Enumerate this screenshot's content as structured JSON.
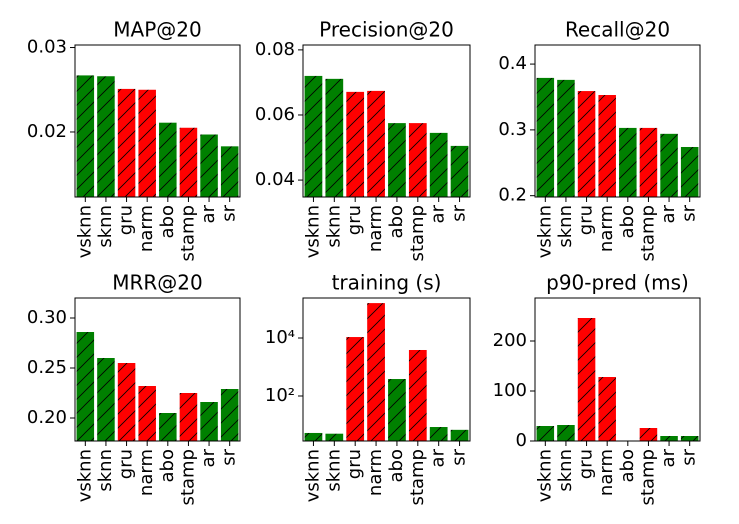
{
  "chart_data": [
    {
      "type": "bar",
      "title": "MAP@20",
      "categories": [
        "vsknn",
        "sknn",
        "gru",
        "narm",
        "abo",
        "stamp",
        "ar",
        "sr"
      ],
      "values": [
        0.0267,
        0.0266,
        0.0251,
        0.025,
        0.0211,
        0.0205,
        0.0197,
        0.0183
      ],
      "colors": [
        "#008000",
        "#008000",
        "#ff0000",
        "#ff0000",
        "#008000",
        "#ff0000",
        "#008000",
        "#008000"
      ],
      "ylim": [
        0.0123,
        0.0303
      ],
      "yticks": [
        0.02,
        0.03
      ]
    },
    {
      "type": "bar",
      "title": "Precision@20",
      "categories": [
        "vsknn",
        "sknn",
        "gru",
        "narm",
        "abo",
        "stamp",
        "ar",
        "sr"
      ],
      "values": [
        0.072,
        0.0711,
        0.0671,
        0.0674,
        0.0575,
        0.0575,
        0.0545,
        0.0505
      ],
      "colors": [
        "#008000",
        "#008000",
        "#ff0000",
        "#ff0000",
        "#008000",
        "#ff0000",
        "#008000",
        "#008000"
      ],
      "ylim": [
        0.0348,
        0.0815
      ],
      "yticks": [
        0.04,
        0.06,
        0.08
      ]
    },
    {
      "type": "bar",
      "title": "Recall@20",
      "categories": [
        "vsknn",
        "sknn",
        "gru",
        "narm",
        "abo",
        "stamp",
        "ar",
        "sr"
      ],
      "values": [
        0.379,
        0.376,
        0.359,
        0.353,
        0.303,
        0.303,
        0.294,
        0.274
      ],
      "colors": [
        "#008000",
        "#008000",
        "#ff0000",
        "#ff0000",
        "#008000",
        "#ff0000",
        "#008000",
        "#008000"
      ],
      "ylim": [
        0.198,
        0.429
      ],
      "yticks": [
        0.2,
        0.3,
        0.4
      ]
    },
    {
      "type": "bar",
      "title": "MRR@20",
      "categories": [
        "vsknn",
        "sknn",
        "gru",
        "narm",
        "abo",
        "stamp",
        "ar",
        "sr"
      ],
      "values": [
        0.286,
        0.26,
        0.255,
        0.232,
        0.205,
        0.225,
        0.216,
        0.229
      ],
      "colors": [
        "#008000",
        "#008000",
        "#ff0000",
        "#ff0000",
        "#008000",
        "#ff0000",
        "#008000",
        "#008000"
      ],
      "ylim": [
        0.177,
        0.32
      ],
      "yticks": [
        {
          "value": 0.2,
          "label": "0.20"
        },
        0.25,
        {
          "value": 0.3,
          "label": "0.30"
        }
      ]
    },
    {
      "type": "bar",
      "title": "training (s)",
      "log": true,
      "categories": [
        "vsknn",
        "sknn",
        "gru",
        "narm",
        "abo",
        "stamp",
        "ar",
        "sr"
      ],
      "values": [
        5.3,
        5,
        10800,
        160000,
        385,
        3860,
        8.5,
        6.8
      ],
      "colors": [
        "#008000",
        "#008000",
        "#ff0000",
        "#ff0000",
        "#008000",
        "#ff0000",
        "#008000",
        "#008000"
      ],
      "ylim": [
        2.8,
        240000
      ],
      "yticks": [
        {
          "value": 100,
          "label": "10²"
        },
        {
          "value": 10000,
          "label": "10⁴"
        }
      ]
    },
    {
      "type": "bar",
      "title": "p90-pred (ms)",
      "categories": [
        "vsknn",
        "sknn",
        "gru",
        "narm",
        "abo",
        "stamp",
        "ar",
        "sr"
      ],
      "values": [
        30,
        32,
        246,
        128,
        0,
        26,
        10,
        10
      ],
      "colors": [
        "#008000",
        "#008000",
        "#ff0000",
        "#ff0000",
        "#008000",
        "#ff0000",
        "#008000",
        "#008000"
      ],
      "ylim": [
        0,
        286
      ],
      "yticks": [
        0,
        100,
        200
      ]
    }
  ]
}
